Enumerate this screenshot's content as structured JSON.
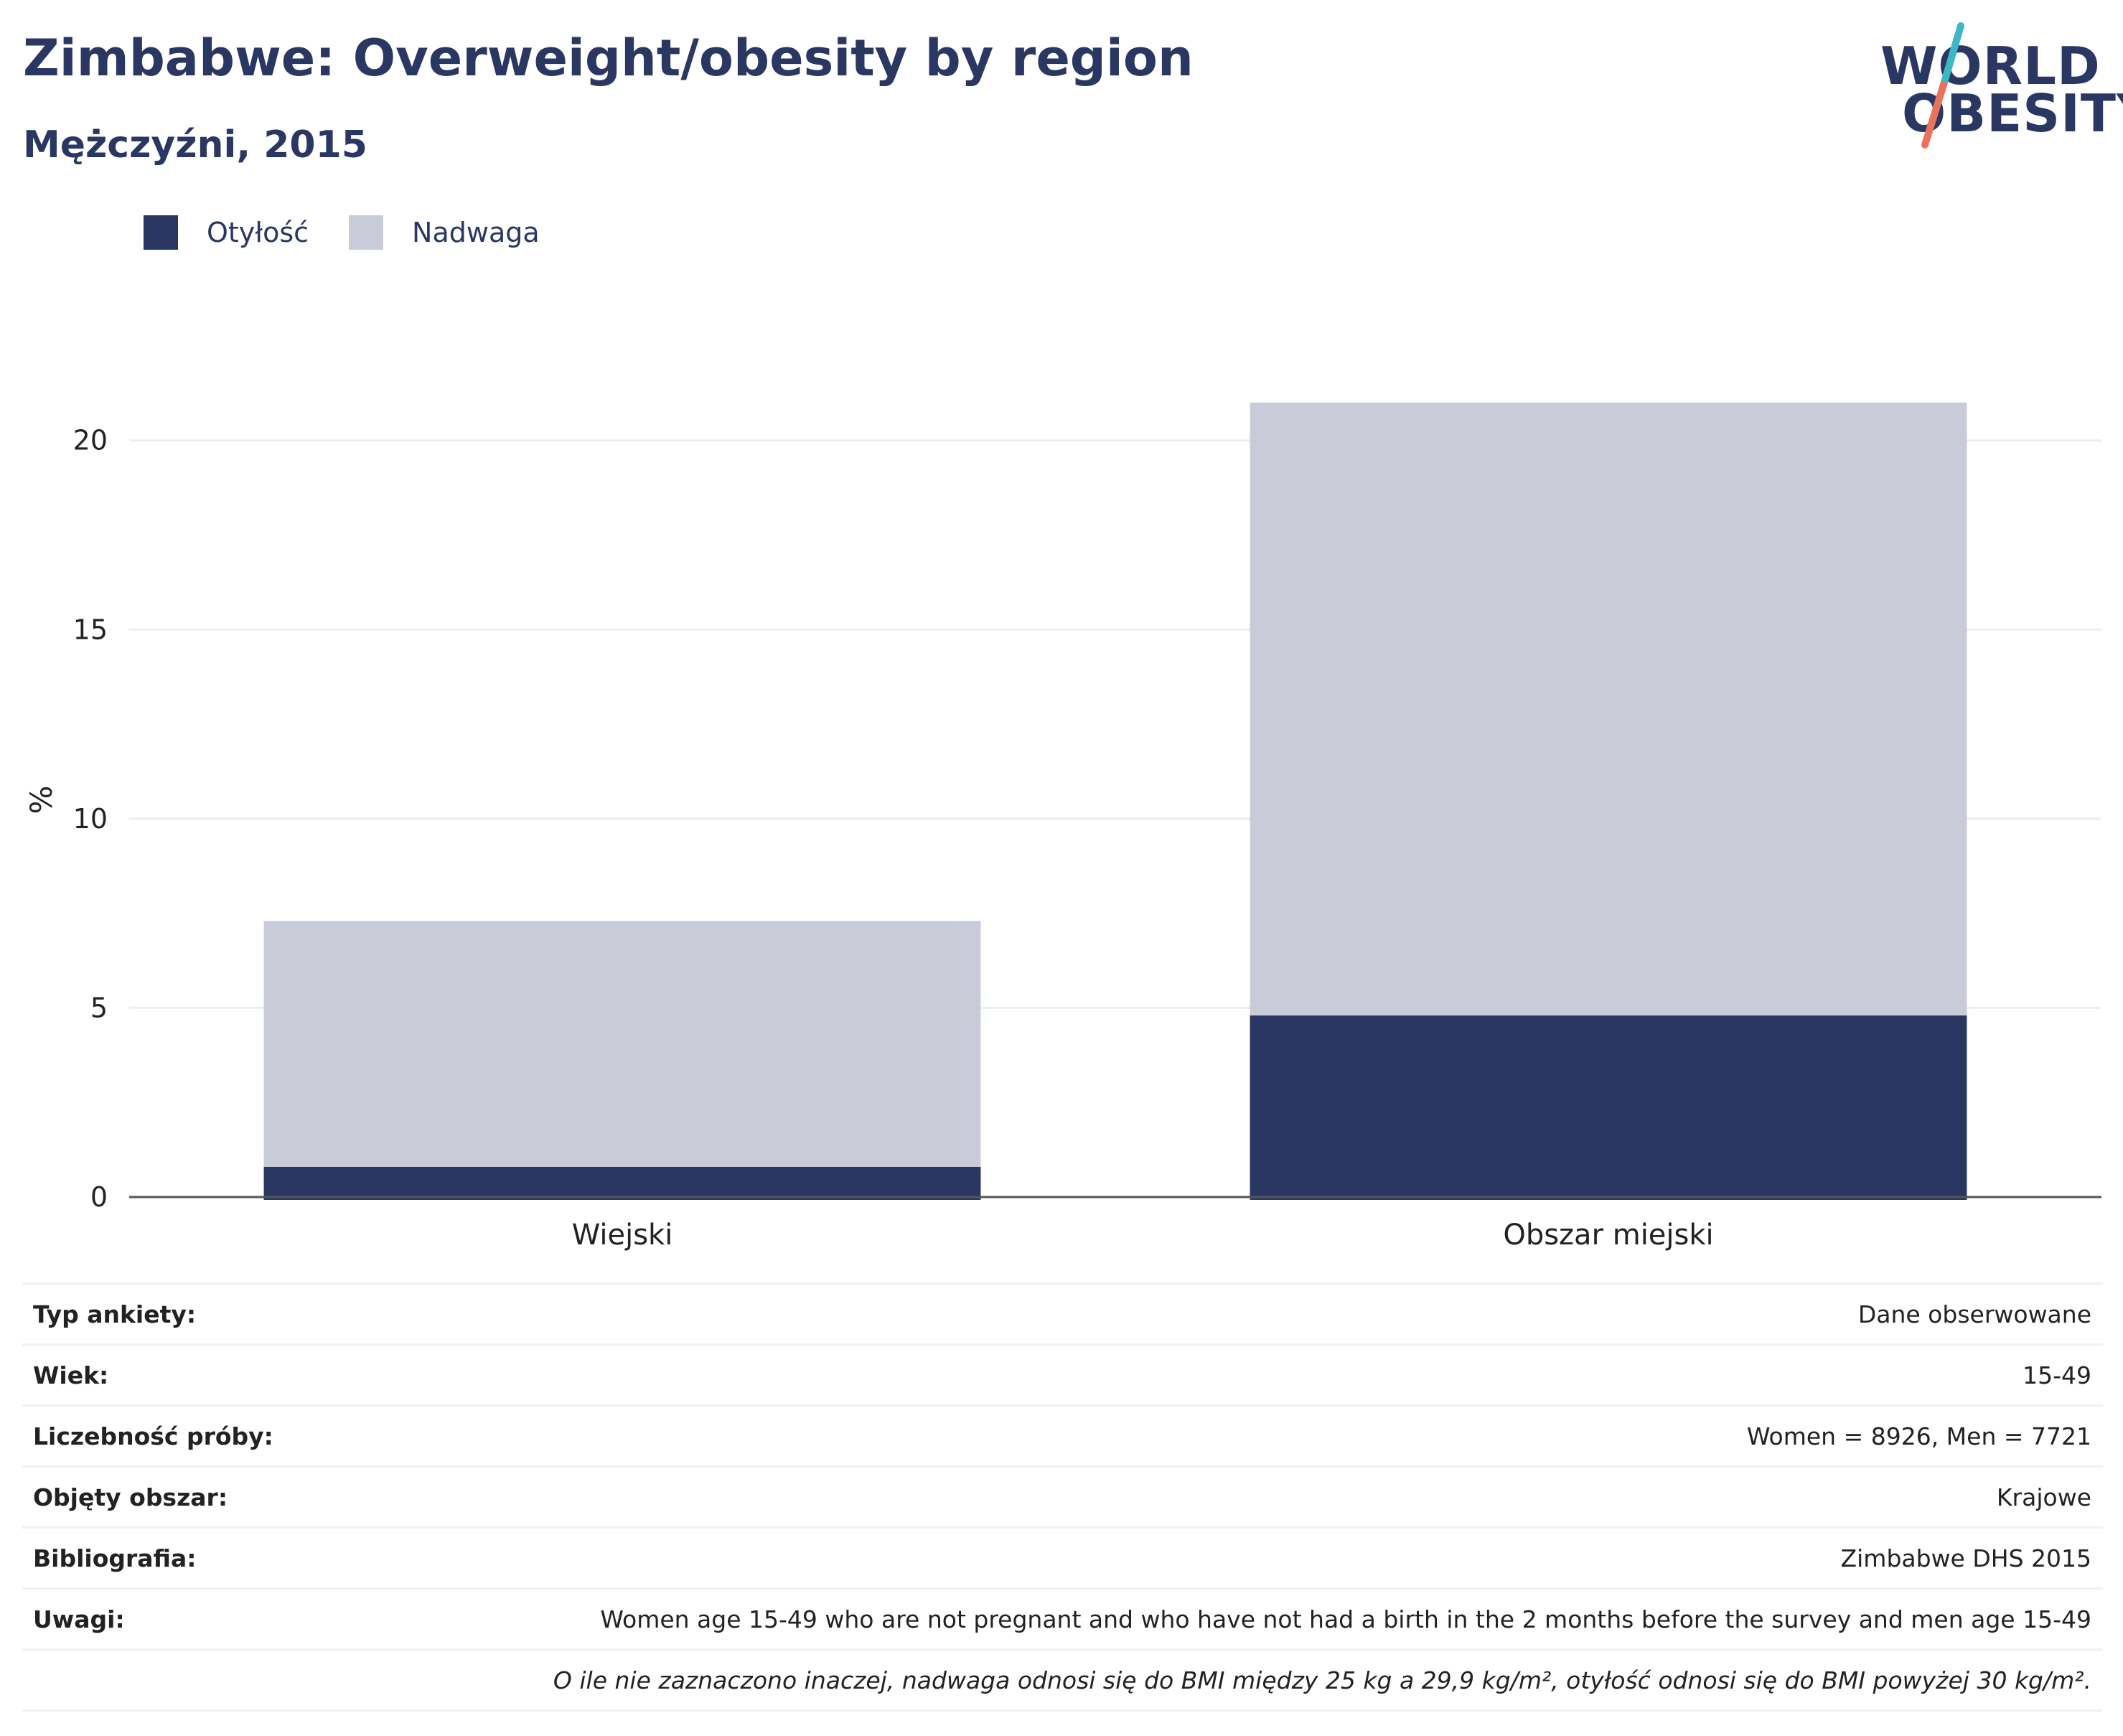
{
  "header": {
    "title": "Zimbabwe: Overweight/obesity by region",
    "subtitle": "Mężczyźni, 2015"
  },
  "logo": {
    "line1": "WORLD",
    "line2": "OBESITY",
    "accent_colors": [
      "#3bb8c3",
      "#e8735f"
    ]
  },
  "colors": {
    "obesity": "#2a3763",
    "overweight": "#c9ccd8",
    "text": "#2a3763",
    "grid": "#eceef2",
    "axis": "#555555"
  },
  "chart_data": {
    "type": "bar",
    "stacked": true,
    "categories": [
      "Wiejski",
      "Obszar miejski"
    ],
    "series": [
      {
        "name": "Otyłość",
        "color": "#2a3763",
        "values": [
          0.8,
          4.8
        ]
      },
      {
        "name": "Nadwaga",
        "color": "#c9ccd8",
        "values": [
          6.5,
          16.2
        ]
      }
    ],
    "ylabel": "%",
    "ylim": [
      0,
      21
    ],
    "yticks": [
      0,
      5,
      10,
      15,
      20
    ],
    "grid": true,
    "legend_position": "top-left"
  },
  "info": {
    "rows": [
      {
        "label": "Typ ankiety:",
        "value": "Dane obserwowane"
      },
      {
        "label": "Wiek:",
        "value": "15-49"
      },
      {
        "label": "Liczebność próby:",
        "value": "Women = 8926, Men = 7721"
      },
      {
        "label": "Objęty obszar:",
        "value": "Krajowe"
      },
      {
        "label": "Bibliografia:",
        "value": "Zimbabwe DHS 2015"
      },
      {
        "label": "Uwagi:",
        "value": "Women age 15-49 who are not pregnant and who have not had a birth in the 2 months before the survey and men age 15-49"
      }
    ],
    "footnote": "O ile nie zaznaczono inaczej, nadwaga odnosi się do BMI między 25 kg a 29,9 kg/m², otyłość odnosi się do BMI powyżej 30 kg/m²."
  }
}
